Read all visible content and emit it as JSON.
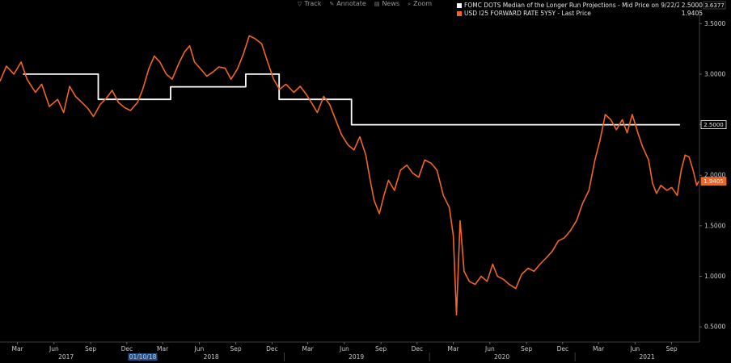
{
  "toolbar": {
    "items": [
      {
        "icon": "filter-icon",
        "label": "Track"
      },
      {
        "icon": "pencil-icon",
        "label": "Annotate"
      },
      {
        "icon": "news-icon",
        "label": "News"
      },
      {
        "icon": "zoom-icon",
        "label": "Zoom"
      }
    ]
  },
  "legend": {
    "items": [
      {
        "label": "FOMC DOTS Median of the Longer Run Projections - Mid Price on 9/22/21",
        "value": "2.5000",
        "color": "#ffffff"
      },
      {
        "label": "USD I25 FORWARD RATE 5Y5Y - Last Price",
        "value": "1.9405",
        "color": "#f26522"
      }
    ],
    "top_right_value": "3.6377"
  },
  "chart_data": {
    "type": "line",
    "ylim": [
      0.35,
      3.6377
    ],
    "yticks": [
      "0.5000",
      "1.0000",
      "1.5000",
      "2.0000",
      "2.5000",
      "3.0000",
      "3.5000"
    ],
    "ytick_values": [
      0.5,
      1.0,
      1.5,
      2.0,
      2.5,
      3.0,
      3.5
    ],
    "xlim": [
      "2017-01-16",
      "2021-11-10"
    ],
    "xticks": [
      {
        "label": "Mar",
        "date": "2017-03-01"
      },
      {
        "label": "Jun",
        "date": "2017-06-01"
      },
      {
        "label": "Sep",
        "date": "2017-09-01"
      },
      {
        "label": "Dec",
        "date": "2017-12-01"
      },
      {
        "label": "Mar",
        "date": "2018-03-01"
      },
      {
        "label": "Jun",
        "date": "2018-06-01"
      },
      {
        "label": "Sep",
        "date": "2018-09-01"
      },
      {
        "label": "Dec",
        "date": "2018-12-01"
      },
      {
        "label": "Mar",
        "date": "2019-03-01"
      },
      {
        "label": "Jun",
        "date": "2019-06-01"
      },
      {
        "label": "Sep",
        "date": "2019-09-01"
      },
      {
        "label": "Dec",
        "date": "2019-12-01"
      },
      {
        "label": "Mar",
        "date": "2020-03-01"
      },
      {
        "label": "Jun",
        "date": "2020-06-01"
      },
      {
        "label": "Sep",
        "date": "2020-09-01"
      },
      {
        "label": "Dec",
        "date": "2020-12-01"
      },
      {
        "label": "Mar",
        "date": "2021-03-01"
      },
      {
        "label": "Jun",
        "date": "2021-06-01"
      },
      {
        "label": "Sep",
        "date": "2021-09-01"
      }
    ],
    "year_labels": [
      {
        "label": "2017",
        "date": "2017-07-01"
      },
      {
        "label": "01/10/18",
        "date": "2018-01-10",
        "highlight": true
      },
      {
        "label": "2018",
        "date": "2018-07-01"
      },
      {
        "label": "2019",
        "date": "2019-07-01"
      },
      {
        "label": "2020",
        "date": "2020-07-01"
      },
      {
        "label": "2021",
        "date": "2021-07-01"
      }
    ],
    "series": [
      {
        "name": "FOMC DOTS Median of the Longer Run Projections - Mid Price on 9/22/21",
        "color": "#ffffff",
        "step": true,
        "points": [
          {
            "x": "2017-03-15",
            "y": 3.0
          },
          {
            "x": "2017-06-14",
            "y": 3.0
          },
          {
            "x": "2017-09-20",
            "y": 2.75
          },
          {
            "x": "2017-12-13",
            "y": 2.75
          },
          {
            "x": "2018-03-21",
            "y": 2.875
          },
          {
            "x": "2018-06-13",
            "y": 2.875
          },
          {
            "x": "2018-09-26",
            "y": 3.0
          },
          {
            "x": "2018-12-19",
            "y": 2.75
          },
          {
            "x": "2019-03-20",
            "y": 2.75
          },
          {
            "x": "2019-06-19",
            "y": 2.5
          },
          {
            "x": "2021-09-22",
            "y": 2.5
          }
        ]
      },
      {
        "name": "USD I25 FORWARD RATE 5Y5Y - Last Price",
        "color": "#f26522",
        "points": [
          {
            "x": "2017-01-16",
            "y": 2.93
          },
          {
            "x": "2017-02-01",
            "y": 3.08
          },
          {
            "x": "2017-02-20",
            "y": 3.0
          },
          {
            "x": "2017-03-10",
            "y": 3.12
          },
          {
            "x": "2017-03-25",
            "y": 2.95
          },
          {
            "x": "2017-04-15",
            "y": 2.82
          },
          {
            "x": "2017-05-01",
            "y": 2.9
          },
          {
            "x": "2017-05-20",
            "y": 2.68
          },
          {
            "x": "2017-06-10",
            "y": 2.75
          },
          {
            "x": "2017-06-25",
            "y": 2.62
          },
          {
            "x": "2017-07-10",
            "y": 2.88
          },
          {
            "x": "2017-07-25",
            "y": 2.78
          },
          {
            "x": "2017-08-10",
            "y": 2.72
          },
          {
            "x": "2017-08-25",
            "y": 2.66
          },
          {
            "x": "2017-09-08",
            "y": 2.58
          },
          {
            "x": "2017-09-25",
            "y": 2.7
          },
          {
            "x": "2017-10-10",
            "y": 2.76
          },
          {
            "x": "2017-10-25",
            "y": 2.84
          },
          {
            "x": "2017-11-10",
            "y": 2.72
          },
          {
            "x": "2017-11-25",
            "y": 2.67
          },
          {
            "x": "2017-12-10",
            "y": 2.64
          },
          {
            "x": "2017-12-28",
            "y": 2.72
          },
          {
            "x": "2018-01-10",
            "y": 2.85
          },
          {
            "x": "2018-01-25",
            "y": 3.05
          },
          {
            "x": "2018-02-08",
            "y": 3.18
          },
          {
            "x": "2018-02-22",
            "y": 3.12
          },
          {
            "x": "2018-03-10",
            "y": 3.0
          },
          {
            "x": "2018-03-25",
            "y": 2.95
          },
          {
            "x": "2018-04-10",
            "y": 3.1
          },
          {
            "x": "2018-04-25",
            "y": 3.22
          },
          {
            "x": "2018-05-08",
            "y": 3.28
          },
          {
            "x": "2018-05-20",
            "y": 3.12
          },
          {
            "x": "2018-06-05",
            "y": 3.05
          },
          {
            "x": "2018-06-20",
            "y": 2.98
          },
          {
            "x": "2018-07-05",
            "y": 3.02
          },
          {
            "x": "2018-07-20",
            "y": 3.07
          },
          {
            "x": "2018-08-05",
            "y": 3.06
          },
          {
            "x": "2018-08-20",
            "y": 2.95
          },
          {
            "x": "2018-09-05",
            "y": 3.05
          },
          {
            "x": "2018-09-20",
            "y": 3.2
          },
          {
            "x": "2018-10-05",
            "y": 3.38
          },
          {
            "x": "2018-10-20",
            "y": 3.35
          },
          {
            "x": "2018-11-05",
            "y": 3.3
          },
          {
            "x": "2018-11-20",
            "y": 3.12
          },
          {
            "x": "2018-12-05",
            "y": 2.95
          },
          {
            "x": "2018-12-20",
            "y": 2.85
          },
          {
            "x": "2019-01-05",
            "y": 2.9
          },
          {
            "x": "2019-01-25",
            "y": 2.82
          },
          {
            "x": "2019-02-10",
            "y": 2.88
          },
          {
            "x": "2019-02-25",
            "y": 2.8
          },
          {
            "x": "2019-03-10",
            "y": 2.72
          },
          {
            "x": "2019-03-25",
            "y": 2.62
          },
          {
            "x": "2019-04-10",
            "y": 2.78
          },
          {
            "x": "2019-04-25",
            "y": 2.7
          },
          {
            "x": "2019-05-10",
            "y": 2.55
          },
          {
            "x": "2019-05-25",
            "y": 2.4
          },
          {
            "x": "2019-06-10",
            "y": 2.3
          },
          {
            "x": "2019-06-25",
            "y": 2.25
          },
          {
            "x": "2019-07-10",
            "y": 2.38
          },
          {
            "x": "2019-07-25",
            "y": 2.2
          },
          {
            "x": "2019-08-05",
            "y": 1.95
          },
          {
            "x": "2019-08-15",
            "y": 1.75
          },
          {
            "x": "2019-08-28",
            "y": 1.62
          },
          {
            "x": "2019-09-10",
            "y": 1.82
          },
          {
            "x": "2019-09-20",
            "y": 1.95
          },
          {
            "x": "2019-10-05",
            "y": 1.85
          },
          {
            "x": "2019-10-20",
            "y": 2.05
          },
          {
            "x": "2019-11-05",
            "y": 2.1
          },
          {
            "x": "2019-11-20",
            "y": 2.02
          },
          {
            "x": "2019-12-05",
            "y": 1.98
          },
          {
            "x": "2019-12-20",
            "y": 2.15
          },
          {
            "x": "2020-01-05",
            "y": 2.12
          },
          {
            "x": "2020-01-20",
            "y": 2.05
          },
          {
            "x": "2020-02-05",
            "y": 1.8
          },
          {
            "x": "2020-02-20",
            "y": 1.68
          },
          {
            "x": "2020-03-01",
            "y": 1.4
          },
          {
            "x": "2020-03-09",
            "y": 0.62
          },
          {
            "x": "2020-03-18",
            "y": 1.55
          },
          {
            "x": "2020-03-28",
            "y": 1.05
          },
          {
            "x": "2020-04-10",
            "y": 0.95
          },
          {
            "x": "2020-04-25",
            "y": 0.92
          },
          {
            "x": "2020-05-10",
            "y": 1.0
          },
          {
            "x": "2020-05-25",
            "y": 0.95
          },
          {
            "x": "2020-06-08",
            "y": 1.12
          },
          {
            "x": "2020-06-20",
            "y": 1.0
          },
          {
            "x": "2020-07-05",
            "y": 0.97
          },
          {
            "x": "2020-07-20",
            "y": 0.92
          },
          {
            "x": "2020-08-05",
            "y": 0.88
          },
          {
            "x": "2020-08-20",
            "y": 1.02
          },
          {
            "x": "2020-09-05",
            "y": 1.08
          },
          {
            "x": "2020-09-20",
            "y": 1.05
          },
          {
            "x": "2020-10-05",
            "y": 1.12
          },
          {
            "x": "2020-10-20",
            "y": 1.18
          },
          {
            "x": "2020-11-05",
            "y": 1.25
          },
          {
            "x": "2020-11-20",
            "y": 1.35
          },
          {
            "x": "2020-12-05",
            "y": 1.38
          },
          {
            "x": "2020-12-20",
            "y": 1.45
          },
          {
            "x": "2021-01-05",
            "y": 1.55
          },
          {
            "x": "2021-01-20",
            "y": 1.72
          },
          {
            "x": "2021-02-05",
            "y": 1.85
          },
          {
            "x": "2021-02-20",
            "y": 2.15
          },
          {
            "x": "2021-03-05",
            "y": 2.35
          },
          {
            "x": "2021-03-18",
            "y": 2.6
          },
          {
            "x": "2021-04-01",
            "y": 2.55
          },
          {
            "x": "2021-04-15",
            "y": 2.45
          },
          {
            "x": "2021-04-30",
            "y": 2.55
          },
          {
            "x": "2021-05-12",
            "y": 2.42
          },
          {
            "x": "2021-05-25",
            "y": 2.6
          },
          {
            "x": "2021-06-08",
            "y": 2.42
          },
          {
            "x": "2021-06-20",
            "y": 2.28
          },
          {
            "x": "2021-07-05",
            "y": 2.15
          },
          {
            "x": "2021-07-15",
            "y": 1.92
          },
          {
            "x": "2021-07-25",
            "y": 1.82
          },
          {
            "x": "2021-08-05",
            "y": 1.9
          },
          {
            "x": "2021-08-20",
            "y": 1.85
          },
          {
            "x": "2021-09-01",
            "y": 1.88
          },
          {
            "x": "2021-09-15",
            "y": 1.8
          },
          {
            "x": "2021-09-25",
            "y": 2.05
          },
          {
            "x": "2021-10-05",
            "y": 2.2
          },
          {
            "x": "2021-10-15",
            "y": 2.18
          },
          {
            "x": "2021-10-25",
            "y": 2.05
          },
          {
            "x": "2021-11-03",
            "y": 1.9
          },
          {
            "x": "2021-11-08",
            "y": 1.94
          }
        ]
      }
    ],
    "last_value_labels": [
      {
        "value": "2.5000",
        "y": 2.5,
        "bg": "#000000",
        "fg": "#ffffff",
        "border": "#ffffff"
      },
      {
        "value": "1.9405",
        "y": 1.9405,
        "bg": "#f26522",
        "fg": "#ffffff",
        "border": "#f26522"
      }
    ]
  }
}
